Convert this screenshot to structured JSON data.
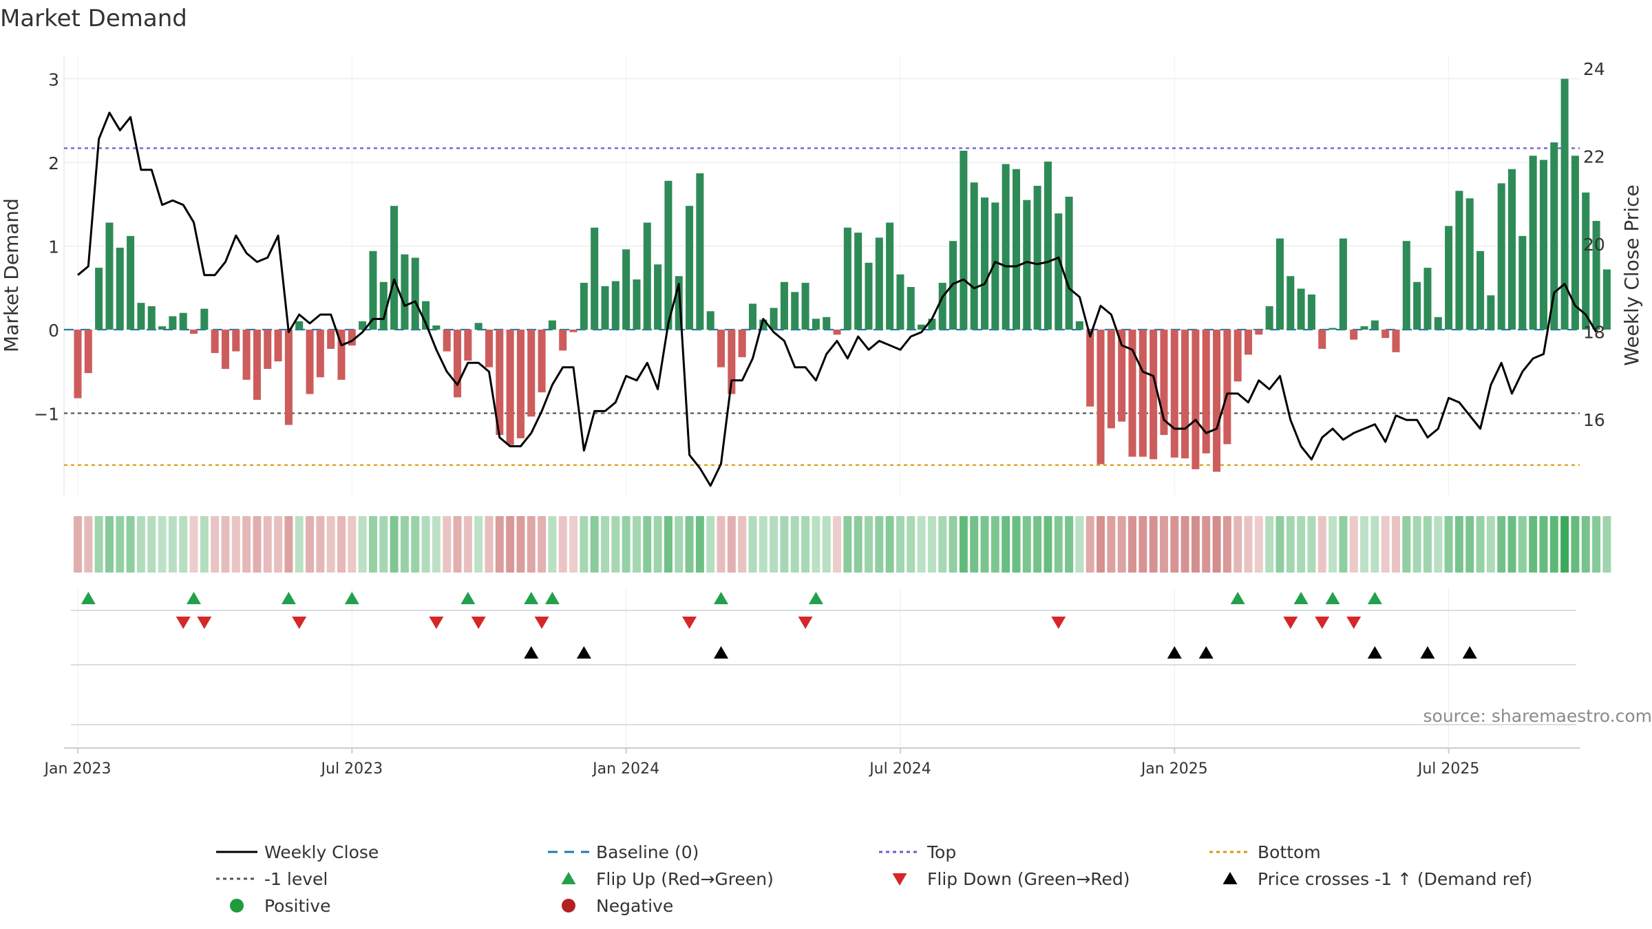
{
  "chart_data": {
    "type": "bar",
    "title": "Market Demand",
    "ylabel": "Market Demand",
    "y2label": "Weekly Close Price",
    "source": "source: sharemaestro.com",
    "ylim": [
      -2.0,
      3.0
    ],
    "y2lim": [
      14.2,
      24.0
    ],
    "yticks": [
      3,
      2,
      1,
      0,
      -1
    ],
    "ytick_labels": [
      "3",
      "2",
      "1",
      "0",
      "−1"
    ],
    "y2ticks": [
      24,
      22,
      20,
      18,
      16
    ],
    "top_level": 2.17,
    "neg1_level": -1.0,
    "bottom_level": -1.62,
    "xtick_labels": [
      "Jan 2023",
      "Jul 2023",
      "Jan 2024",
      "Jul 2024",
      "Jan 2025",
      "Jul 2025"
    ],
    "xtick_weeks": [
      0,
      26,
      52,
      78,
      104,
      130
    ],
    "demand": [
      -0.82,
      -0.52,
      0.74,
      1.28,
      0.98,
      1.12,
      0.32,
      0.28,
      0.04,
      0.16,
      0.2,
      -0.05,
      0.25,
      -0.28,
      -0.47,
      -0.26,
      -0.6,
      -0.84,
      -0.47,
      -0.38,
      -1.14,
      0.1,
      -0.77,
      -0.57,
      -0.23,
      -0.6,
      -0.19,
      0.1,
      0.94,
      0.57,
      1.48,
      0.9,
      0.86,
      0.34,
      0.05,
      -0.26,
      -0.81,
      -0.37,
      0.08,
      -0.45,
      -1.26,
      -1.38,
      -1.3,
      -1.04,
      -0.75,
      0.11,
      -0.25,
      -0.03,
      0.56,
      1.22,
      0.52,
      0.58,
      0.96,
      0.6,
      1.28,
      0.78,
      1.78,
      0.64,
      1.48,
      1.87,
      0.22,
      -0.45,
      -0.77,
      -0.33,
      0.31,
      0.12,
      0.26,
      0.57,
      0.45,
      0.56,
      0.13,
      0.15,
      -0.06,
      1.22,
      1.16,
      0.8,
      1.1,
      1.28,
      0.66,
      0.51,
      0.06,
      0.13,
      0.56,
      1.06,
      2.14,
      1.76,
      1.58,
      1.52,
      1.98,
      1.92,
      1.55,
      1.72,
      2.01,
      1.39,
      1.59,
      0.1,
      -0.92,
      -1.61,
      -1.18,
      -1.1,
      -1.52,
      -1.52,
      -1.55,
      -1.26,
      -1.53,
      -1.54,
      -1.67,
      -1.48,
      -1.7,
      -1.37,
      -0.62,
      -0.3,
      -0.06,
      0.28,
      1.09,
      0.64,
      0.49,
      0.42,
      -0.23,
      0.02,
      1.09,
      -0.12,
      0.04,
      0.11,
      -0.1,
      -0.27,
      1.06,
      0.57,
      0.74,
      0.15,
      1.24,
      1.66,
      1.57,
      0.94,
      0.41,
      1.75,
      1.92,
      1.12,
      2.08,
      2.03,
      2.24,
      3.0,
      2.08,
      1.64,
      1.3,
      0.72
    ],
    "close": [
      19.3,
      19.5,
      22.4,
      23.0,
      22.6,
      22.9,
      21.7,
      21.7,
      20.9,
      21.0,
      20.9,
      20.5,
      19.3,
      19.3,
      19.6,
      20.2,
      19.8,
      19.6,
      19.7,
      20.2,
      18.0,
      18.4,
      18.2,
      18.4,
      18.4,
      17.7,
      17.8,
      18.0,
      18.3,
      18.3,
      19.2,
      18.6,
      18.7,
      18.2,
      17.6,
      17.1,
      16.8,
      17.3,
      17.3,
      17.1,
      15.6,
      15.4,
      15.4,
      15.7,
      16.2,
      16.8,
      17.2,
      17.2,
      15.3,
      16.2,
      16.2,
      16.4,
      17.0,
      16.9,
      17.3,
      16.7,
      18.2,
      19.1,
      15.2,
      14.9,
      14.5,
      15.0,
      16.9,
      16.9,
      17.4,
      18.3,
      18.0,
      17.8,
      17.2,
      17.2,
      16.9,
      17.5,
      17.8,
      17.4,
      17.9,
      17.6,
      17.8,
      17.7,
      17.6,
      17.9,
      18.0,
      18.3,
      18.8,
      19.1,
      19.2,
      19.0,
      19.1,
      19.6,
      19.5,
      19.5,
      19.6,
      19.55,
      19.6,
      19.7,
      19.0,
      18.8,
      17.9,
      18.6,
      18.4,
      17.7,
      17.6,
      17.1,
      17.0,
      16.0,
      15.8,
      15.8,
      16.0,
      15.7,
      15.8,
      16.6,
      16.6,
      16.4,
      16.9,
      16.7,
      17.0,
      16.0,
      15.4,
      15.1,
      15.6,
      15.8,
      15.55,
      15.7,
      15.8,
      15.9,
      15.5,
      16.1,
      16.0,
      16.0,
      15.6,
      15.8,
      16.5,
      16.4,
      16.1,
      15.8,
      16.8,
      17.3,
      16.6,
      17.1,
      17.4,
      17.5,
      18.9,
      19.1,
      18.6,
      18.4,
      18.0
    ],
    "intensity_strip": "weekly heat colour of demand",
    "flip_up_weeks": [
      1,
      11,
      20,
      26,
      37,
      43,
      45,
      61,
      70,
      110,
      116,
      119,
      123
    ],
    "flip_down_weeks": [
      10,
      12,
      21,
      34,
      38,
      44,
      58,
      69,
      93,
      115,
      118,
      121
    ],
    "price_cross_weeks": [
      43,
      48,
      61,
      104,
      107,
      123,
      128,
      132
    ],
    "legend": [
      {
        "key": "weekly_close",
        "label": "Weekly Close",
        "symbol": "line",
        "color": "#000000"
      },
      {
        "key": "baseline",
        "label": "Baseline (0)",
        "symbol": "dash",
        "color": "#1f77b4"
      },
      {
        "key": "top",
        "label": "Top",
        "symbol": "dot",
        "color": "#6a5acd"
      },
      {
        "key": "bottom",
        "label": "Bottom",
        "symbol": "dot",
        "color": "#d99a00"
      },
      {
        "key": "neg1",
        "label": "-1 level",
        "symbol": "dot",
        "color": "#555555"
      },
      {
        "key": "flip_up",
        "label": "Flip Up (Red→Green)",
        "symbol": "tri-up",
        "color": "#22a04b"
      },
      {
        "key": "flip_down",
        "label": "Flip Down (Green→Red)",
        "symbol": "tri-down",
        "color": "#d62728"
      },
      {
        "key": "price_cross",
        "label": "Price crosses -1 ↑ (Demand ref)",
        "symbol": "tri-up",
        "color": "#000000"
      },
      {
        "key": "positive",
        "label": "Positive",
        "symbol": "circle",
        "color": "#1e9b3a"
      },
      {
        "key": "negative",
        "label": "Negative",
        "symbol": "circle",
        "color": "#b22222"
      }
    ],
    "colors": {
      "positive_bar": "#2e8b57",
      "negative_bar": "#cd5c5c",
      "grid": "#e6e6e6",
      "axis": "#cccccc",
      "text": "#333333"
    }
  }
}
